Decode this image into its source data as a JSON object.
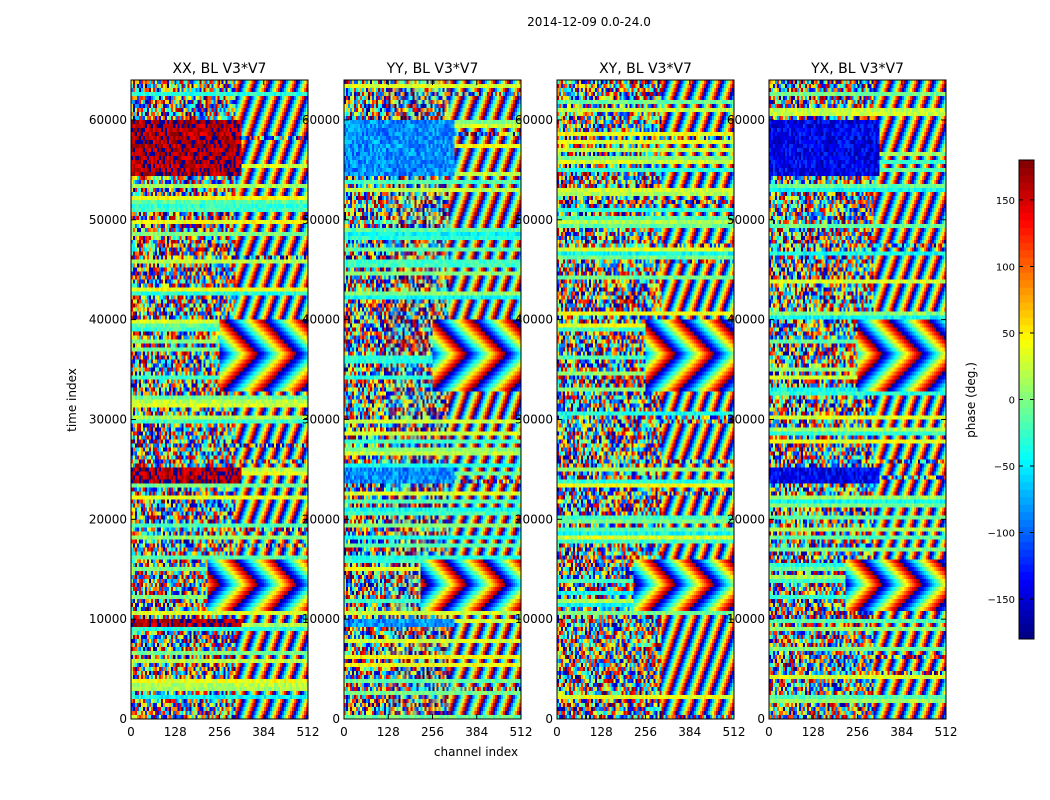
{
  "figure": {
    "suptitle": "2014-12-09 0.0-24.0"
  },
  "chart_data": {
    "type": "heatmap",
    "x_label": "channel index",
    "y_label": "time index",
    "x_lim": [
      0,
      512
    ],
    "y_lim": [
      0,
      64000
    ],
    "x_ticks": [
      0,
      128,
      256,
      384,
      512
    ],
    "y_ticks": [
      0,
      10000,
      20000,
      30000,
      40000,
      50000,
      60000
    ],
    "panels": [
      {
        "title": "XX, BL V3*V7",
        "bias_phase": 165,
        "coherent_time_bands": [
          [
            54500,
            59800
          ],
          [
            23800,
            25200
          ],
          [
            9300,
            9800
          ]
        ]
      },
      {
        "title": "YY, BL V3*V7",
        "bias_phase": -85,
        "coherent_time_bands": [
          [
            54500,
            59800
          ],
          [
            23800,
            25200
          ],
          [
            9300,
            9800
          ]
        ]
      },
      {
        "title": "XY, BL V3*V7",
        "bias_phase": 20,
        "coherent_time_bands": []
      },
      {
        "title": "YX, BL V3*V7",
        "bias_phase": -140,
        "coherent_time_bands": [
          [
            54500,
            59800
          ],
          [
            23800,
            25200
          ]
        ]
      }
    ],
    "fringe_regions": [
      {
        "t_range": [
          33000,
          40000
        ],
        "chan_range": [
          256,
          512
        ]
      },
      {
        "t_range": [
          11000,
          16000
        ],
        "chan_range": [
          220,
          512
        ]
      }
    ],
    "colorbar": {
      "label": "phase (deg.)",
      "range": [
        -180,
        180
      ],
      "ticks": [
        -150,
        -100,
        -50,
        0,
        50,
        100,
        150
      ],
      "tick_labels": [
        "−150",
        "−100",
        "−50",
        "0",
        "50",
        "100",
        "150"
      ],
      "colormap": "jet"
    }
  }
}
